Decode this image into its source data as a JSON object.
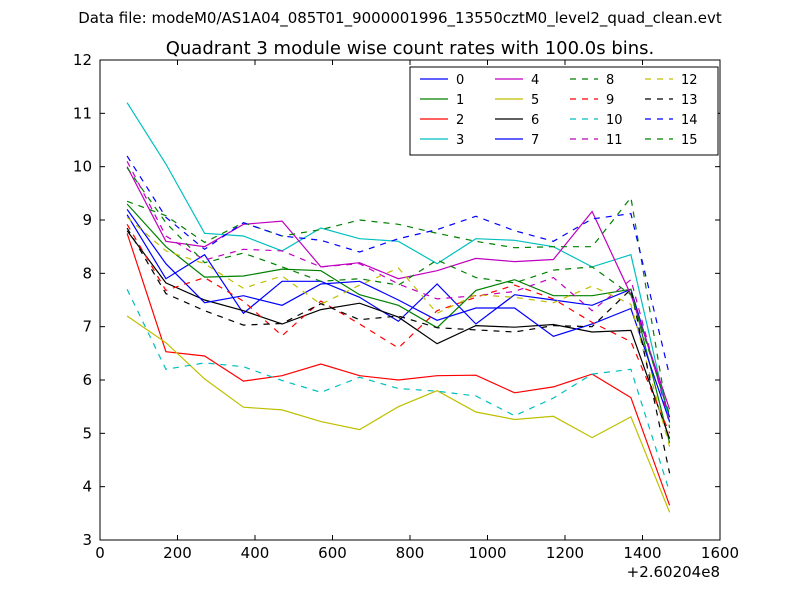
{
  "suptitle": "Data file: modeM0/AS1A04_085T01_9000001996_13550cztM0_level2_quad_clean.evt",
  "chart_data": {
    "type": "line",
    "title": "Quadrant 3 module wise count rates with 100.0s bins.",
    "xlabel": "",
    "ylabel": "",
    "x_offset_label": "+2.60204e8",
    "xlim": [
      0,
      1600
    ],
    "ylim": [
      3,
      12
    ],
    "x_ticks": [
      0,
      200,
      400,
      600,
      800,
      1000,
      1200,
      1400,
      1600
    ],
    "y_ticks": [
      3,
      4,
      5,
      6,
      7,
      8,
      9,
      10,
      11,
      12
    ],
    "grid": false,
    "legend_position": "top-right",
    "x": [
      70,
      170,
      270,
      370,
      470,
      570,
      670,
      770,
      870,
      970,
      1070,
      1170,
      1270,
      1370,
      1470
    ],
    "series": [
      {
        "name": "0",
        "color": "#0000ff",
        "style": "solid",
        "values": [
          9.1,
          7.9,
          8.35,
          7.25,
          7.85,
          7.85,
          7.55,
          7.1,
          7.8,
          7.05,
          7.6,
          7.5,
          7.4,
          7.7,
          5.3
        ]
      },
      {
        "name": "1",
        "color": "#008000",
        "style": "solid",
        "values": [
          9.3,
          8.5,
          7.93,
          7.95,
          8.08,
          8.05,
          7.6,
          7.4,
          6.98,
          7.68,
          7.88,
          7.58,
          7.58,
          7.7,
          4.82
        ]
      },
      {
        "name": "2",
        "color": "#ff0000",
        "style": "solid",
        "values": [
          8.75,
          6.53,
          6.45,
          5.98,
          6.08,
          6.3,
          6.08,
          6.0,
          6.08,
          6.09,
          5.76,
          5.87,
          6.11,
          5.67,
          3.65
        ]
      },
      {
        "name": "3",
        "color": "#00bfbf",
        "style": "solid",
        "values": [
          11.2,
          10.05,
          8.75,
          8.7,
          8.42,
          8.85,
          8.65,
          8.6,
          8.18,
          8.65,
          8.62,
          8.5,
          8.12,
          8.35,
          5.2
        ]
      },
      {
        "name": "4",
        "color": "#bf00bf",
        "style": "solid",
        "values": [
          10.0,
          8.6,
          8.5,
          8.92,
          8.98,
          8.12,
          8.2,
          7.9,
          8.05,
          8.28,
          8.22,
          8.26,
          9.16,
          7.6,
          5.45
        ]
      },
      {
        "name": "5",
        "color": "#bfbf00",
        "style": "solid",
        "values": [
          7.2,
          6.7,
          6.02,
          5.49,
          5.44,
          5.22,
          5.07,
          5.5,
          5.8,
          5.4,
          5.26,
          5.32,
          4.92,
          5.31,
          3.52
        ]
      },
      {
        "name": "6",
        "color": "#000000",
        "style": "solid",
        "values": [
          8.8,
          7.82,
          7.5,
          7.3,
          7.05,
          7.32,
          7.44,
          7.18,
          6.68,
          7.02,
          6.99,
          7.04,
          6.9,
          6.93,
          4.9
        ]
      },
      {
        "name": "7",
        "color": "#0000ff",
        "style": "solid",
        "values": [
          9.2,
          8.18,
          7.45,
          7.58,
          7.4,
          7.8,
          7.85,
          7.5,
          7.12,
          7.35,
          7.35,
          6.82,
          7.05,
          7.34,
          5.22
        ]
      },
      {
        "name": "8",
        "color": "#008000",
        "style": "dashed",
        "values": [
          9.35,
          9.08,
          8.58,
          8.95,
          8.7,
          8.82,
          9.0,
          8.92,
          8.75,
          8.6,
          8.48,
          8.5,
          8.5,
          9.42,
          5.1
        ]
      },
      {
        "name": "9",
        "color": "#ff0000",
        "style": "dashed",
        "values": [
          8.92,
          7.68,
          7.92,
          7.48,
          6.83,
          7.48,
          7.05,
          6.6,
          7.3,
          7.55,
          7.78,
          7.52,
          7.08,
          6.72,
          5.0
        ]
      },
      {
        "name": "10",
        "color": "#00bfbf",
        "style": "dashed",
        "values": [
          7.7,
          6.2,
          6.32,
          6.25,
          5.99,
          5.77,
          6.05,
          5.84,
          5.79,
          5.7,
          5.33,
          5.66,
          6.11,
          6.2,
          3.9
        ]
      },
      {
        "name": "11",
        "color": "#bf00bf",
        "style": "dashed",
        "values": [
          10.1,
          8.7,
          8.25,
          8.45,
          8.42,
          8.12,
          8.18,
          7.8,
          7.52,
          7.58,
          7.66,
          7.92,
          7.3,
          7.88,
          5.2
        ]
      },
      {
        "name": "12",
        "color": "#bfbf00",
        "style": "dashed",
        "values": [
          9.05,
          8.42,
          8.18,
          7.72,
          7.95,
          7.42,
          7.78,
          8.1,
          7.25,
          7.6,
          7.55,
          7.45,
          7.76,
          7.42,
          4.75
        ]
      },
      {
        "name": "13",
        "color": "#000000",
        "style": "dashed",
        "values": [
          8.85,
          7.62,
          7.3,
          7.03,
          7.06,
          7.43,
          7.13,
          7.2,
          6.98,
          6.94,
          6.9,
          7.02,
          7.0,
          7.7,
          4.25
        ]
      },
      {
        "name": "14",
        "color": "#0000ff",
        "style": "dashed",
        "values": [
          10.2,
          9.05,
          8.45,
          8.95,
          8.7,
          8.62,
          8.4,
          8.65,
          8.82,
          9.07,
          8.8,
          8.6,
          9.02,
          9.12,
          6.08
        ]
      },
      {
        "name": "15",
        "color": "#008000",
        "style": "dashed",
        "values": [
          9.98,
          8.95,
          8.2,
          8.38,
          8.12,
          7.85,
          7.9,
          7.78,
          8.25,
          7.92,
          7.82,
          8.06,
          8.12,
          7.6,
          5.35
        ]
      }
    ]
  }
}
